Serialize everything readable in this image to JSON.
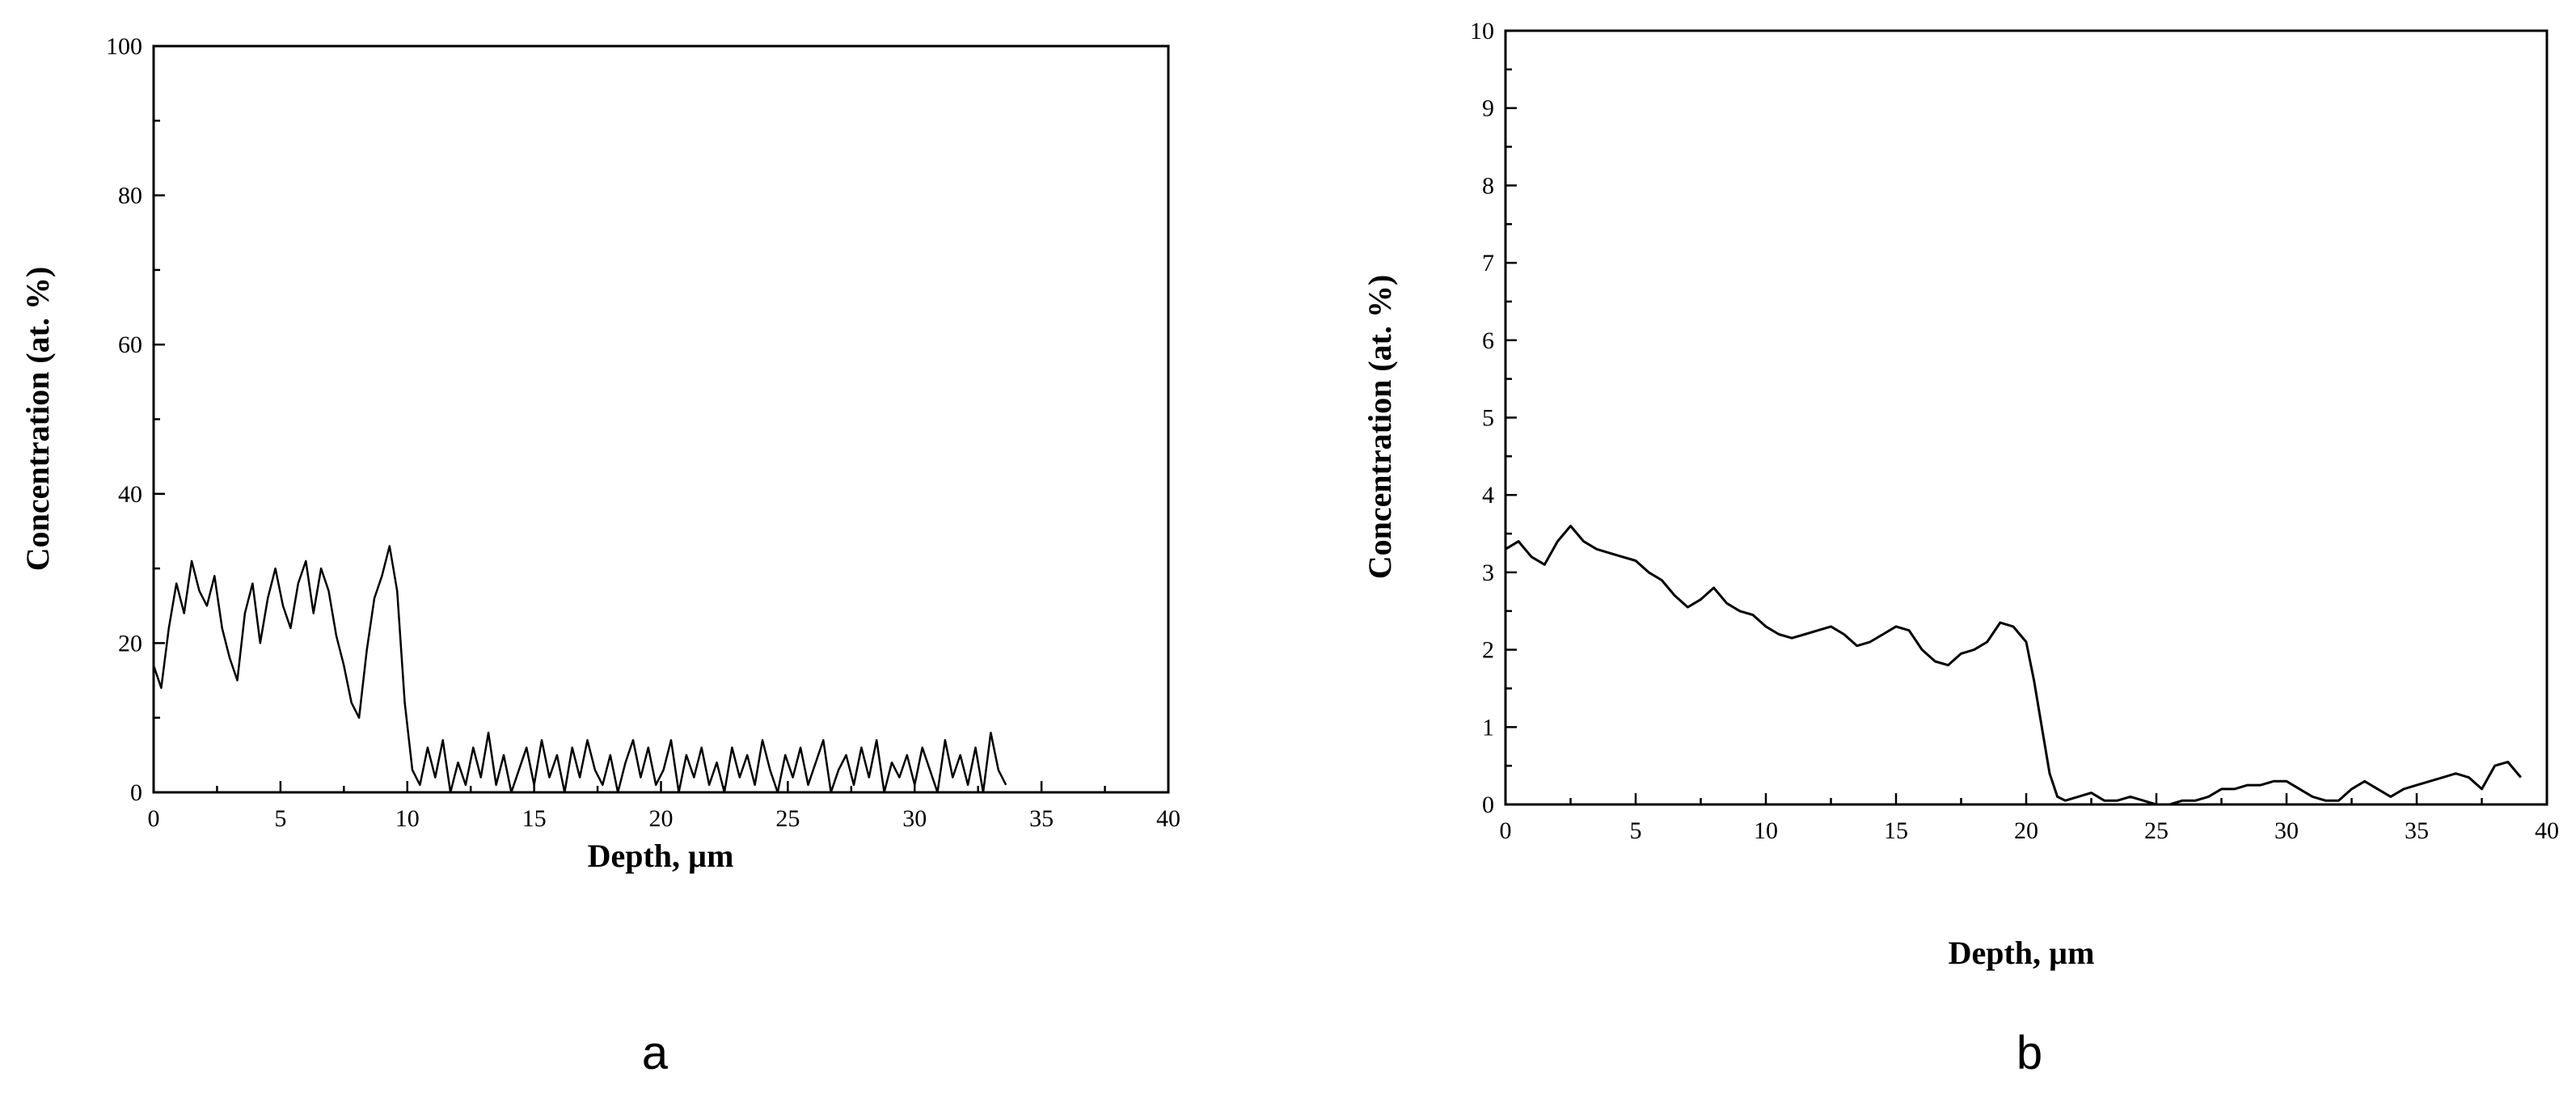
{
  "chart_data": [
    {
      "id": "a",
      "type": "line",
      "panel_label": "a",
      "xlabel": "Depth, µm",
      "ylabel": "Concentration (at. %)",
      "xlim": [
        0,
        40
      ],
      "ylim": [
        0,
        100
      ],
      "xticks": [
        0,
        5,
        10,
        15,
        20,
        25,
        30,
        35,
        40
      ],
      "yticks": [
        0,
        20,
        40,
        60,
        80,
        100
      ],
      "grid": false,
      "series": [
        {
          "color": "#000000",
          "x": [
            0.0,
            0.3,
            0.6,
            0.9,
            1.2,
            1.5,
            1.8,
            2.1,
            2.4,
            2.7,
            3.0,
            3.3,
            3.6,
            3.9,
            4.2,
            4.5,
            4.8,
            5.1,
            5.4,
            5.7,
            6.0,
            6.3,
            6.6,
            6.9,
            7.2,
            7.5,
            7.8,
            8.1,
            8.4,
            8.7,
            9.0,
            9.3,
            9.6,
            9.9,
            10.2,
            10.5,
            10.8,
            11.1,
            11.4,
            11.7,
            12.0,
            12.3,
            12.6,
            12.9,
            13.2,
            13.5,
            13.8,
            14.1,
            14.4,
            14.7,
            15.0,
            15.3,
            15.6,
            15.9,
            16.2,
            16.5,
            16.8,
            17.1,
            17.4,
            17.7,
            18.0,
            18.3,
            18.6,
            18.9,
            19.2,
            19.5,
            19.8,
            20.1,
            20.4,
            20.7,
            21.0,
            21.3,
            21.6,
            21.9,
            22.2,
            22.5,
            22.8,
            23.1,
            23.4,
            23.7,
            24.0,
            24.3,
            24.6,
            24.9,
            25.2,
            25.5,
            25.8,
            26.1,
            26.4,
            26.7,
            27.0,
            27.3,
            27.6,
            27.9,
            28.2,
            28.5,
            28.8,
            29.1,
            29.4,
            29.7,
            30.0,
            30.3,
            30.6,
            30.9,
            31.2,
            31.5,
            31.8,
            32.1,
            32.4,
            32.7,
            33.0,
            33.3,
            33.6
          ],
          "y": [
            17,
            14,
            22,
            28,
            24,
            31,
            27,
            25,
            29,
            22,
            18,
            15,
            24,
            28,
            20,
            26,
            30,
            25,
            22,
            28,
            31,
            24,
            30,
            27,
            21,
            17,
            12,
            10,
            19,
            26,
            29,
            33,
            27,
            12,
            3,
            1,
            6,
            2,
            7,
            0,
            4,
            1,
            6,
            2,
            8,
            1,
            5,
            0,
            3,
            6,
            1,
            7,
            2,
            5,
            0,
            6,
            2,
            7,
            3,
            1,
            5,
            0,
            4,
            7,
            2,
            6,
            1,
            3,
            7,
            0,
            5,
            2,
            6,
            1,
            4,
            0,
            6,
            2,
            5,
            1,
            7,
            3,
            0,
            5,
            2,
            6,
            1,
            4,
            7,
            0,
            3,
            5,
            1,
            6,
            2,
            7,
            0,
            4,
            2,
            5,
            1,
            6,
            3,
            0,
            7,
            2,
            5,
            1,
            6,
            0,
            8,
            3,
            1
          ]
        }
      ]
    },
    {
      "id": "b",
      "type": "line",
      "panel_label": "b",
      "xlabel": "Depth, µm",
      "ylabel": "Concentration (at. %)",
      "xlim": [
        0,
        40
      ],
      "ylim": [
        0,
        10
      ],
      "xticks": [
        0,
        5,
        10,
        15,
        20,
        25,
        30,
        35,
        40
      ],
      "yticks": [
        0,
        1,
        2,
        3,
        4,
        5,
        6,
        7,
        8,
        9,
        10
      ],
      "grid": false,
      "series": [
        {
          "color": "#000000",
          "x": [
            0,
            0.5,
            1,
            1.5,
            2,
            2.5,
            3,
            3.5,
            4,
            4.5,
            5,
            5.5,
            6,
            6.5,
            7,
            7.5,
            8,
            8.5,
            9,
            9.5,
            10,
            10.5,
            11,
            11.5,
            12,
            12.5,
            13,
            13.5,
            14,
            14.5,
            15,
            15.5,
            16,
            16.5,
            17,
            17.5,
            18,
            18.5,
            19,
            19.5,
            20,
            20.3,
            20.6,
            20.9,
            21.2,
            21.5,
            22,
            22.5,
            23,
            23.5,
            24,
            24.5,
            25,
            25.5,
            26,
            26.5,
            27,
            27.5,
            28,
            28.5,
            29,
            29.5,
            30,
            30.5,
            31,
            31.5,
            32,
            32.5,
            33,
            33.5,
            34,
            34.5,
            35,
            35.5,
            36,
            36.5,
            37,
            37.5,
            38,
            38.5,
            39
          ],
          "y": [
            3.3,
            3.4,
            3.2,
            3.1,
            3.4,
            3.6,
            3.4,
            3.3,
            3.25,
            3.2,
            3.15,
            3.0,
            2.9,
            2.7,
            2.55,
            2.65,
            2.8,
            2.6,
            2.5,
            2.45,
            2.3,
            2.2,
            2.15,
            2.2,
            2.25,
            2.3,
            2.2,
            2.05,
            2.1,
            2.2,
            2.3,
            2.25,
            2.0,
            1.85,
            1.8,
            1.95,
            2.0,
            2.1,
            2.35,
            2.3,
            2.1,
            1.6,
            1.0,
            0.4,
            0.1,
            0.05,
            0.1,
            0.15,
            0.05,
            0.05,
            0.1,
            0.05,
            0.0,
            0.0,
            0.05,
            0.05,
            0.1,
            0.2,
            0.2,
            0.25,
            0.25,
            0.3,
            0.3,
            0.2,
            0.1,
            0.05,
            0.05,
            0.2,
            0.3,
            0.2,
            0.1,
            0.2,
            0.25,
            0.3,
            0.35,
            0.4,
            0.35,
            0.2,
            0.5,
            0.55,
            0.35
          ]
        }
      ]
    }
  ]
}
